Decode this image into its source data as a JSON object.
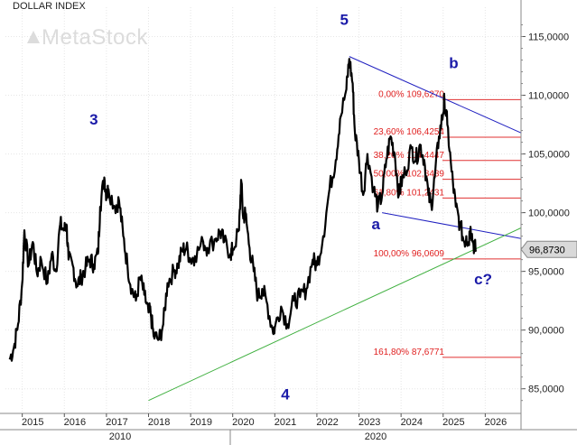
{
  "chart_data": {
    "type": "line",
    "title": "DOLLAR INDEX",
    "watermark": "MetaStock",
    "x_ticks": [
      "2015",
      "2016",
      "2017",
      "2018",
      "2019",
      "2020",
      "2021",
      "2022",
      "2023",
      "2024",
      "2025",
      "2026"
    ],
    "x_decade_labels": [
      "2010",
      "2020"
    ],
    "y_ticks": [
      "85,0000",
      "90,0000",
      "95,0000",
      "100,0000",
      "105,0000",
      "110,0000",
      "115,0000"
    ],
    "ylim": [
      82.9,
      117.5
    ],
    "xlim": [
      2014.6,
      2026.85
    ],
    "last_value": "96,8730",
    "series": [
      {
        "color": "#000000",
        "points": [
          [
            2014.7,
            87.5
          ],
          [
            2014.8,
            88.5
          ],
          [
            2014.9,
            90.5
          ],
          [
            2015.0,
            94.0
          ],
          [
            2015.05,
            98.5
          ],
          [
            2015.15,
            95.5
          ],
          [
            2015.25,
            97.5
          ],
          [
            2015.35,
            94.8
          ],
          [
            2015.45,
            96.0
          ],
          [
            2015.6,
            94.0
          ],
          [
            2015.7,
            96.5
          ],
          [
            2015.8,
            95.0
          ],
          [
            2015.9,
            99.0
          ],
          [
            2016.0,
            98.5
          ],
          [
            2016.05,
            99.0
          ],
          [
            2016.1,
            96.0
          ],
          [
            2016.2,
            95.5
          ],
          [
            2016.3,
            93.8
          ],
          [
            2016.4,
            94.5
          ],
          [
            2016.5,
            95.3
          ],
          [
            2016.6,
            96.0
          ],
          [
            2016.7,
            95.6
          ],
          [
            2016.8,
            96.5
          ],
          [
            2016.85,
            100.5
          ],
          [
            2016.95,
            103.0
          ],
          [
            2017.0,
            101.5
          ],
          [
            2017.05,
            102.0
          ],
          [
            2017.2,
            100.5
          ],
          [
            2017.3,
            101.0
          ],
          [
            2017.4,
            98.0
          ],
          [
            2017.5,
            95.5
          ],
          [
            2017.6,
            93.5
          ],
          [
            2017.7,
            92.5
          ],
          [
            2017.8,
            94.5
          ],
          [
            2017.9,
            93.0
          ],
          [
            2018.0,
            91.5
          ],
          [
            2018.05,
            91.5
          ],
          [
            2018.12,
            89.5
          ],
          [
            2018.25,
            89.2
          ],
          [
            2018.35,
            90.5
          ],
          [
            2018.45,
            94.0
          ],
          [
            2018.6,
            95.0
          ],
          [
            2018.7,
            95.5
          ],
          [
            2018.8,
            96.8
          ],
          [
            2018.9,
            97.0
          ],
          [
            2019.0,
            96.0
          ],
          [
            2019.1,
            96.3
          ],
          [
            2019.3,
            97.5
          ],
          [
            2019.4,
            97.0
          ],
          [
            2019.6,
            97.8
          ],
          [
            2019.7,
            98.4
          ],
          [
            2019.8,
            97.5
          ],
          [
            2019.95,
            96.5
          ],
          [
            2020.0,
            96.8
          ],
          [
            2020.15,
            98.5
          ],
          [
            2020.2,
            102.8
          ],
          [
            2020.25,
            99.5
          ],
          [
            2020.3,
            100.0
          ],
          [
            2020.4,
            97.0
          ],
          [
            2020.5,
            95.0
          ],
          [
            2020.6,
            92.8
          ],
          [
            2020.7,
            93.5
          ],
          [
            2020.8,
            92.5
          ],
          [
            2020.95,
            90.0
          ],
          [
            2021.0,
            90.2
          ],
          [
            2021.15,
            92.0
          ],
          [
            2021.3,
            90.5
          ],
          [
            2021.45,
            92.5
          ],
          [
            2021.6,
            92.8
          ],
          [
            2021.75,
            93.5
          ],
          [
            2021.9,
            96.0
          ],
          [
            2022.0,
            95.5
          ],
          [
            2022.15,
            98.0
          ],
          [
            2022.3,
            102.0
          ],
          [
            2022.45,
            104.5
          ],
          [
            2022.55,
            108.0
          ],
          [
            2022.7,
            110.5
          ],
          [
            2022.77,
            113.1
          ],
          [
            2022.85,
            111.0
          ],
          [
            2022.9,
            107.0
          ],
          [
            2023.0,
            104.5
          ],
          [
            2023.1,
            101.5
          ],
          [
            2023.2,
            105.0
          ],
          [
            2023.35,
            102.0
          ],
          [
            2023.45,
            100.5
          ],
          [
            2023.55,
            101.5
          ],
          [
            2023.65,
            104.5
          ],
          [
            2023.75,
            106.5
          ],
          [
            2023.85,
            105.0
          ],
          [
            2023.95,
            101.5
          ],
          [
            2024.0,
            102.5
          ],
          [
            2024.1,
            103.5
          ],
          [
            2024.25,
            105.5
          ],
          [
            2024.35,
            104.5
          ],
          [
            2024.45,
            105.8
          ],
          [
            2024.55,
            104.5
          ],
          [
            2024.65,
            101.5
          ],
          [
            2024.72,
            100.6
          ],
          [
            2024.8,
            103.0
          ],
          [
            2024.9,
            106.5
          ],
          [
            2025.0,
            108.5
          ],
          [
            2025.03,
            109.6
          ],
          [
            2025.1,
            107.5
          ],
          [
            2025.2,
            103.5
          ],
          [
            2025.3,
            100.5
          ],
          [
            2025.4,
            99.0
          ],
          [
            2025.5,
            97.5
          ],
          [
            2025.55,
            98.0
          ],
          [
            2025.6,
            97.4
          ],
          [
            2025.65,
            98.8
          ],
          [
            2025.72,
            97.3
          ],
          [
            2025.78,
            96.8
          ]
        ]
      }
    ],
    "wave_labels": [
      {
        "text": "5",
        "x": 2022.65,
        "y": 116.0
      },
      {
        "text": "3",
        "x": 2016.7,
        "y": 107.5
      },
      {
        "text": "4",
        "x": 2021.25,
        "y": 84.1
      },
      {
        "text": "a",
        "x": 2023.4,
        "y": 98.6
      },
      {
        "text": "b",
        "x": 2025.25,
        "y": 112.3
      },
      {
        "text": "c?",
        "x": 2025.95,
        "y": 93.9
      }
    ],
    "trendlines": [
      {
        "color": "#2020c0",
        "points": [
          [
            2022.77,
            113.3
          ],
          [
            2026.85,
            106.8
          ]
        ]
      },
      {
        "color": "#2020c0",
        "points": [
          [
            2023.55,
            100.0
          ],
          [
            2026.85,
            97.8
          ]
        ]
      },
      {
        "color": "#40b040",
        "points": [
          [
            2018.0,
            84.0
          ],
          [
            2026.85,
            98.7
          ]
        ]
      }
    ],
    "fib_levels": [
      {
        "label": "0,00% 109,6270",
        "value": 109.627
      },
      {
        "label": "23,60% 106,4254",
        "value": 106.4254
      },
      {
        "label": "38,20% 104,4447",
        "value": 104.4447
      },
      {
        "label": "50,00% 102,8439",
        "value": 102.8439
      },
      {
        "label": "61,80% 101,2431",
        "value": 101.2431
      },
      {
        "label": "100,00% 96,0609",
        "value": 96.0609
      },
      {
        "label": "161,80% 87,6771",
        "value": 87.6771
      }
    ]
  }
}
